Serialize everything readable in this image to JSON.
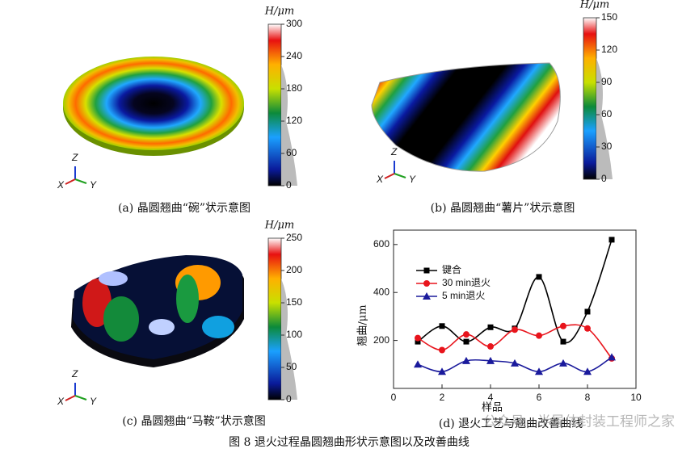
{
  "panels": [
    {
      "unit": "H/μm",
      "clim": [
        0,
        300
      ],
      "ticks": [
        0,
        60,
        120,
        180,
        240,
        300
      ],
      "axes": [
        "X",
        "Y",
        "Z"
      ],
      "caption": "(a) 晶圆翘曲“碗”状示意图"
    },
    {
      "unit": "H/μm",
      "clim": [
        0,
        150
      ],
      "ticks": [
        0,
        30,
        60,
        90,
        120,
        150
      ],
      "axes": [
        "X",
        "Y",
        "Z"
      ],
      "caption": "(b) 晶圆翘曲“薯片”状示意图"
    },
    {
      "unit": "H/μm",
      "clim": [
        0,
        250
      ],
      "ticks": [
        0,
        50,
        100,
        150,
        200,
        250
      ],
      "axes": [
        "X",
        "Y",
        "Z"
      ],
      "caption": "(c) 晶圆翘曲“马鞍”状示意图"
    }
  ],
  "chart_data": {
    "type": "line",
    "caption": "(d) 退火工艺与翘曲改善曲线",
    "xlabel": "样品",
    "ylabel": "翘曲/μm",
    "x": [
      1,
      2,
      3,
      4,
      5,
      6,
      7,
      8,
      9
    ],
    "series": [
      {
        "name": "键合",
        "color": "#000000",
        "marker": "square",
        "values": [
          195,
          260,
          195,
          255,
          250,
          465,
          195,
          320,
          620
        ]
      },
      {
        "name": "30 min退火",
        "color": "#e8141c",
        "marker": "circle",
        "values": [
          210,
          160,
          225,
          175,
          245,
          220,
          260,
          250,
          125
        ]
      },
      {
        "name": "5 min退火",
        "color": "#1a1a9c",
        "marker": "triangle",
        "values": [
          100,
          70,
          115,
          115,
          105,
          70,
          105,
          70,
          130
        ]
      }
    ],
    "xlim": [
      0,
      10
    ],
    "xticks": [
      0,
      2,
      4,
      6,
      8,
      10
    ],
    "ylim": [
      0,
      660
    ],
    "yticks": [
      200,
      400,
      600
    ],
    "legend": "upper-left"
  },
  "caption": "图 8  退火过程晶圆翘曲形状示意图以及改善曲线",
  "watermark": "公众号 · 半导体封装工程师之家"
}
